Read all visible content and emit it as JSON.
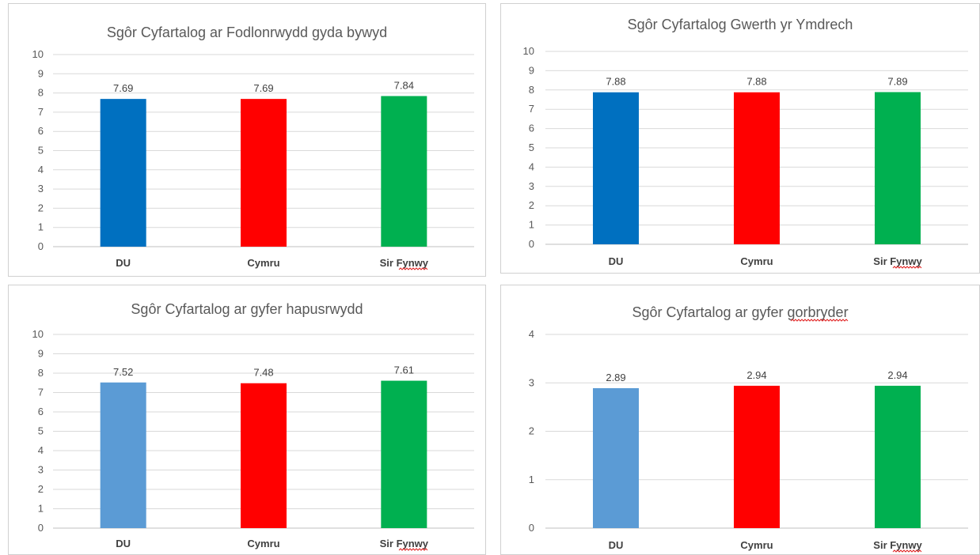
{
  "chart_data": [
    {
      "type": "bar",
      "title": "Sgôr Cyfartalog ar Fodlonrwydd gyda bywyd",
      "categories": [
        "DU",
        "Cymru",
        "Sir Fynwy"
      ],
      "values": [
        7.69,
        7.69,
        7.84
      ],
      "data_labels": [
        "7.69",
        "7.69",
        "7.84"
      ],
      "colors": [
        "#0070C0",
        "#FF0000",
        "#00B050"
      ],
      "ylim": [
        0,
        10
      ],
      "yticks": [
        "0",
        "1",
        "2",
        "3",
        "4",
        "5",
        "6",
        "7",
        "8",
        "9",
        "10"
      ],
      "grid": true,
      "spellcheck_underline": [
        "Sir Fynwy"
      ]
    },
    {
      "type": "bar",
      "title": "Sgôr Cyfartalog Gwerth yr Ymdrech",
      "categories": [
        "DU",
        "Cymru",
        "Sir Fynwy"
      ],
      "values": [
        7.88,
        7.88,
        7.89
      ],
      "data_labels": [
        "7.88",
        "7.88",
        "7.89"
      ],
      "colors": [
        "#0070C0",
        "#FF0000",
        "#00B050"
      ],
      "ylim": [
        0,
        10
      ],
      "yticks": [
        "0",
        "1",
        "2",
        "3",
        "4",
        "5",
        "6",
        "7",
        "8",
        "9",
        "10"
      ],
      "grid": true,
      "spellcheck_underline": [
        "Sir Fynwy"
      ]
    },
    {
      "type": "bar",
      "title": "Sgôr Cyfartalog ar gyfer hapusrwydd",
      "categories": [
        "DU",
        "Cymru",
        "Sir Fynwy"
      ],
      "values": [
        7.52,
        7.48,
        7.61
      ],
      "data_labels": [
        "7.52",
        "7.48",
        "7.61"
      ],
      "colors": [
        "#5B9BD5",
        "#FF0000",
        "#00B050"
      ],
      "ylim": [
        0,
        10
      ],
      "yticks": [
        "0",
        "1",
        "2",
        "3",
        "4",
        "5",
        "6",
        "7",
        "8",
        "9",
        "10"
      ],
      "grid": true,
      "spellcheck_underline": [
        "Sir Fynwy"
      ]
    },
    {
      "type": "bar",
      "title": "Sgôr Cyfartalog ar gyfer gorbryder",
      "categories": [
        "DU",
        "Cymru",
        "Sir Fynwy"
      ],
      "values": [
        2.89,
        2.94,
        2.94
      ],
      "data_labels": [
        "2.89",
        "2.94",
        "2.94"
      ],
      "colors": [
        "#5B9BD5",
        "#FF0000",
        "#00B050"
      ],
      "ylim": [
        0,
        4
      ],
      "yticks": [
        "0",
        "1",
        "2",
        "3",
        "4"
      ],
      "grid": true,
      "spellcheck_underline": [
        "Sir Fynwy",
        "gorbryder"
      ]
    }
  ]
}
